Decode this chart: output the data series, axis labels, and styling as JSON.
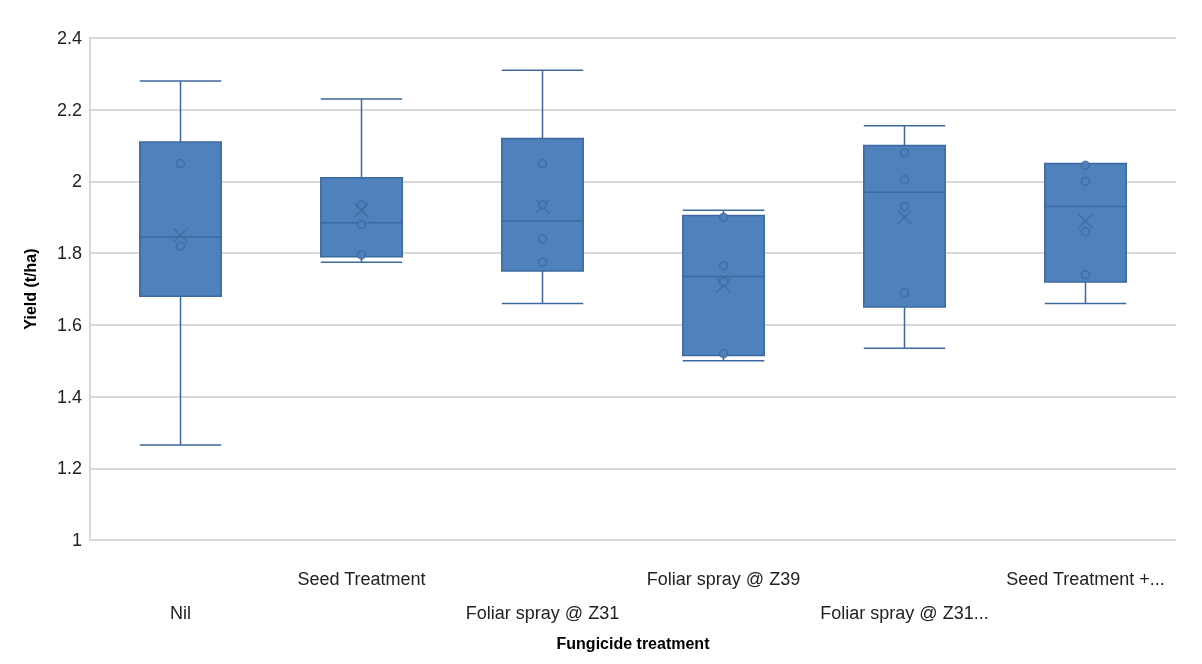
{
  "chart_data": {
    "type": "box",
    "xlabel": "Fungicide treatment",
    "ylabel": "Yield (t/ha)",
    "categories": [
      "Nil",
      "Seed Treatment",
      "Foliar spray @ Z31",
      "Foliar spray @ Z39",
      "Foliar spray @ Z31...",
      "Seed Treatment +..."
    ],
    "color": "#4f81bd",
    "boxes": [
      {
        "low": 1.265,
        "q1": 1.68,
        "median": 1.845,
        "q3": 2.11,
        "high": 2.28,
        "mean": 1.85
      },
      {
        "low": 1.775,
        "q1": 1.79,
        "median": 1.885,
        "q3": 2.01,
        "high": 2.23,
        "mean": 1.92
      },
      {
        "low": 1.66,
        "q1": 1.75,
        "median": 1.89,
        "q3": 2.12,
        "high": 2.31,
        "mean": 1.93
      },
      {
        "low": 1.5,
        "q1": 1.515,
        "median": 1.735,
        "q3": 1.905,
        "high": 1.92,
        "mean": 1.71
      },
      {
        "low": 1.535,
        "q1": 1.65,
        "median": 1.97,
        "q3": 2.1,
        "high": 2.155,
        "mean": 1.9
      },
      {
        "low": 1.66,
        "q1": 1.72,
        "median": 1.93,
        "q3": 2.05,
        "high": 2.05,
        "mean": 1.89
      }
    ],
    "series": [
      {
        "type": "scatter",
        "color": "#3d6a9e",
        "marker": "circle",
        "x": [
          "Nil",
          "Nil",
          "Seed Treatment",
          "Seed Treatment",
          "Seed Treatment",
          "Foliar spray @ Z31",
          "Foliar spray @ Z31",
          "Foliar spray @ Z31",
          "Foliar spray @ Z31",
          "Foliar spray @ Z39",
          "Foliar spray @ Z39",
          "Foliar spray @ Z39",
          "Foliar spray @ Z39",
          "Foliar spray @ Z31...",
          "Foliar spray @ Z31...",
          "Foliar spray @ Z31...",
          "Foliar spray @ Z31...",
          "Seed Treatment +...",
          "Seed Treatment +...",
          "Seed Treatment +...",
          "Seed Treatment +..."
        ],
        "values": [
          2.05,
          1.82,
          1.935,
          1.88,
          1.795,
          2.05,
          1.935,
          1.84,
          1.775,
          1.9,
          1.765,
          1.72,
          1.52,
          2.08,
          2.005,
          1.93,
          1.69,
          2.045,
          2.0,
          1.86,
          1.74
        ]
      }
    ],
    "ylim": [
      1,
      2.4
    ],
    "yticks": [
      1,
      1.2,
      1.4,
      1.6,
      1.8,
      2,
      2.2,
      2.4
    ],
    "grid": "y"
  }
}
